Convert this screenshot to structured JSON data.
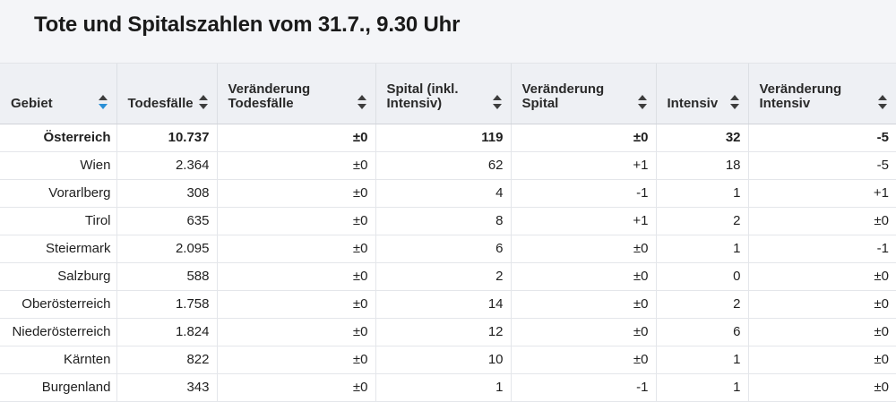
{
  "title": "Tote und Spitalszahlen vom 31.7., 9.30 Uhr",
  "colors": {
    "header_bg": "#f4f5f8",
    "table_head_bg": "#eef0f4",
    "sort_active": "#2a8fd6"
  },
  "columns": [
    {
      "label": "Gebiet",
      "sort_active": true
    },
    {
      "label": "Todesfälle"
    },
    {
      "label": "Veränderung Todesfälle"
    },
    {
      "label": "Spital (inkl. Intensiv)"
    },
    {
      "label": "Veränderung Spital"
    },
    {
      "label": "Intensiv"
    },
    {
      "label": "Veränderung Intensiv"
    }
  ],
  "rows": [
    {
      "region": "Österreich",
      "deaths": "10.737",
      "deaths_change": "±0",
      "hospital": "119",
      "hospital_change": "±0",
      "icu": "32",
      "icu_change": "-5",
      "total": true
    },
    {
      "region": "Wien",
      "deaths": "2.364",
      "deaths_change": "±0",
      "hospital": "62",
      "hospital_change": "+1",
      "icu": "18",
      "icu_change": "-5"
    },
    {
      "region": "Vorarlberg",
      "deaths": "308",
      "deaths_change": "±0",
      "hospital": "4",
      "hospital_change": "-1",
      "icu": "1",
      "icu_change": "+1"
    },
    {
      "region": "Tirol",
      "deaths": "635",
      "deaths_change": "±0",
      "hospital": "8",
      "hospital_change": "+1",
      "icu": "2",
      "icu_change": "±0"
    },
    {
      "region": "Steiermark",
      "deaths": "2.095",
      "deaths_change": "±0",
      "hospital": "6",
      "hospital_change": "±0",
      "icu": "1",
      "icu_change": "-1"
    },
    {
      "region": "Salzburg",
      "deaths": "588",
      "deaths_change": "±0",
      "hospital": "2",
      "hospital_change": "±0",
      "icu": "0",
      "icu_change": "±0"
    },
    {
      "region": "Oberösterreich",
      "deaths": "1.758",
      "deaths_change": "±0",
      "hospital": "14",
      "hospital_change": "±0",
      "icu": "2",
      "icu_change": "±0"
    },
    {
      "region": "Niederösterreich",
      "deaths": "1.824",
      "deaths_change": "±0",
      "hospital": "12",
      "hospital_change": "±0",
      "icu": "6",
      "icu_change": "±0"
    },
    {
      "region": "Kärnten",
      "deaths": "822",
      "deaths_change": "±0",
      "hospital": "10",
      "hospital_change": "±0",
      "icu": "1",
      "icu_change": "±0"
    },
    {
      "region": "Burgenland",
      "deaths": "343",
      "deaths_change": "±0",
      "hospital": "1",
      "hospital_change": "-1",
      "icu": "1",
      "icu_change": "±0"
    }
  ]
}
